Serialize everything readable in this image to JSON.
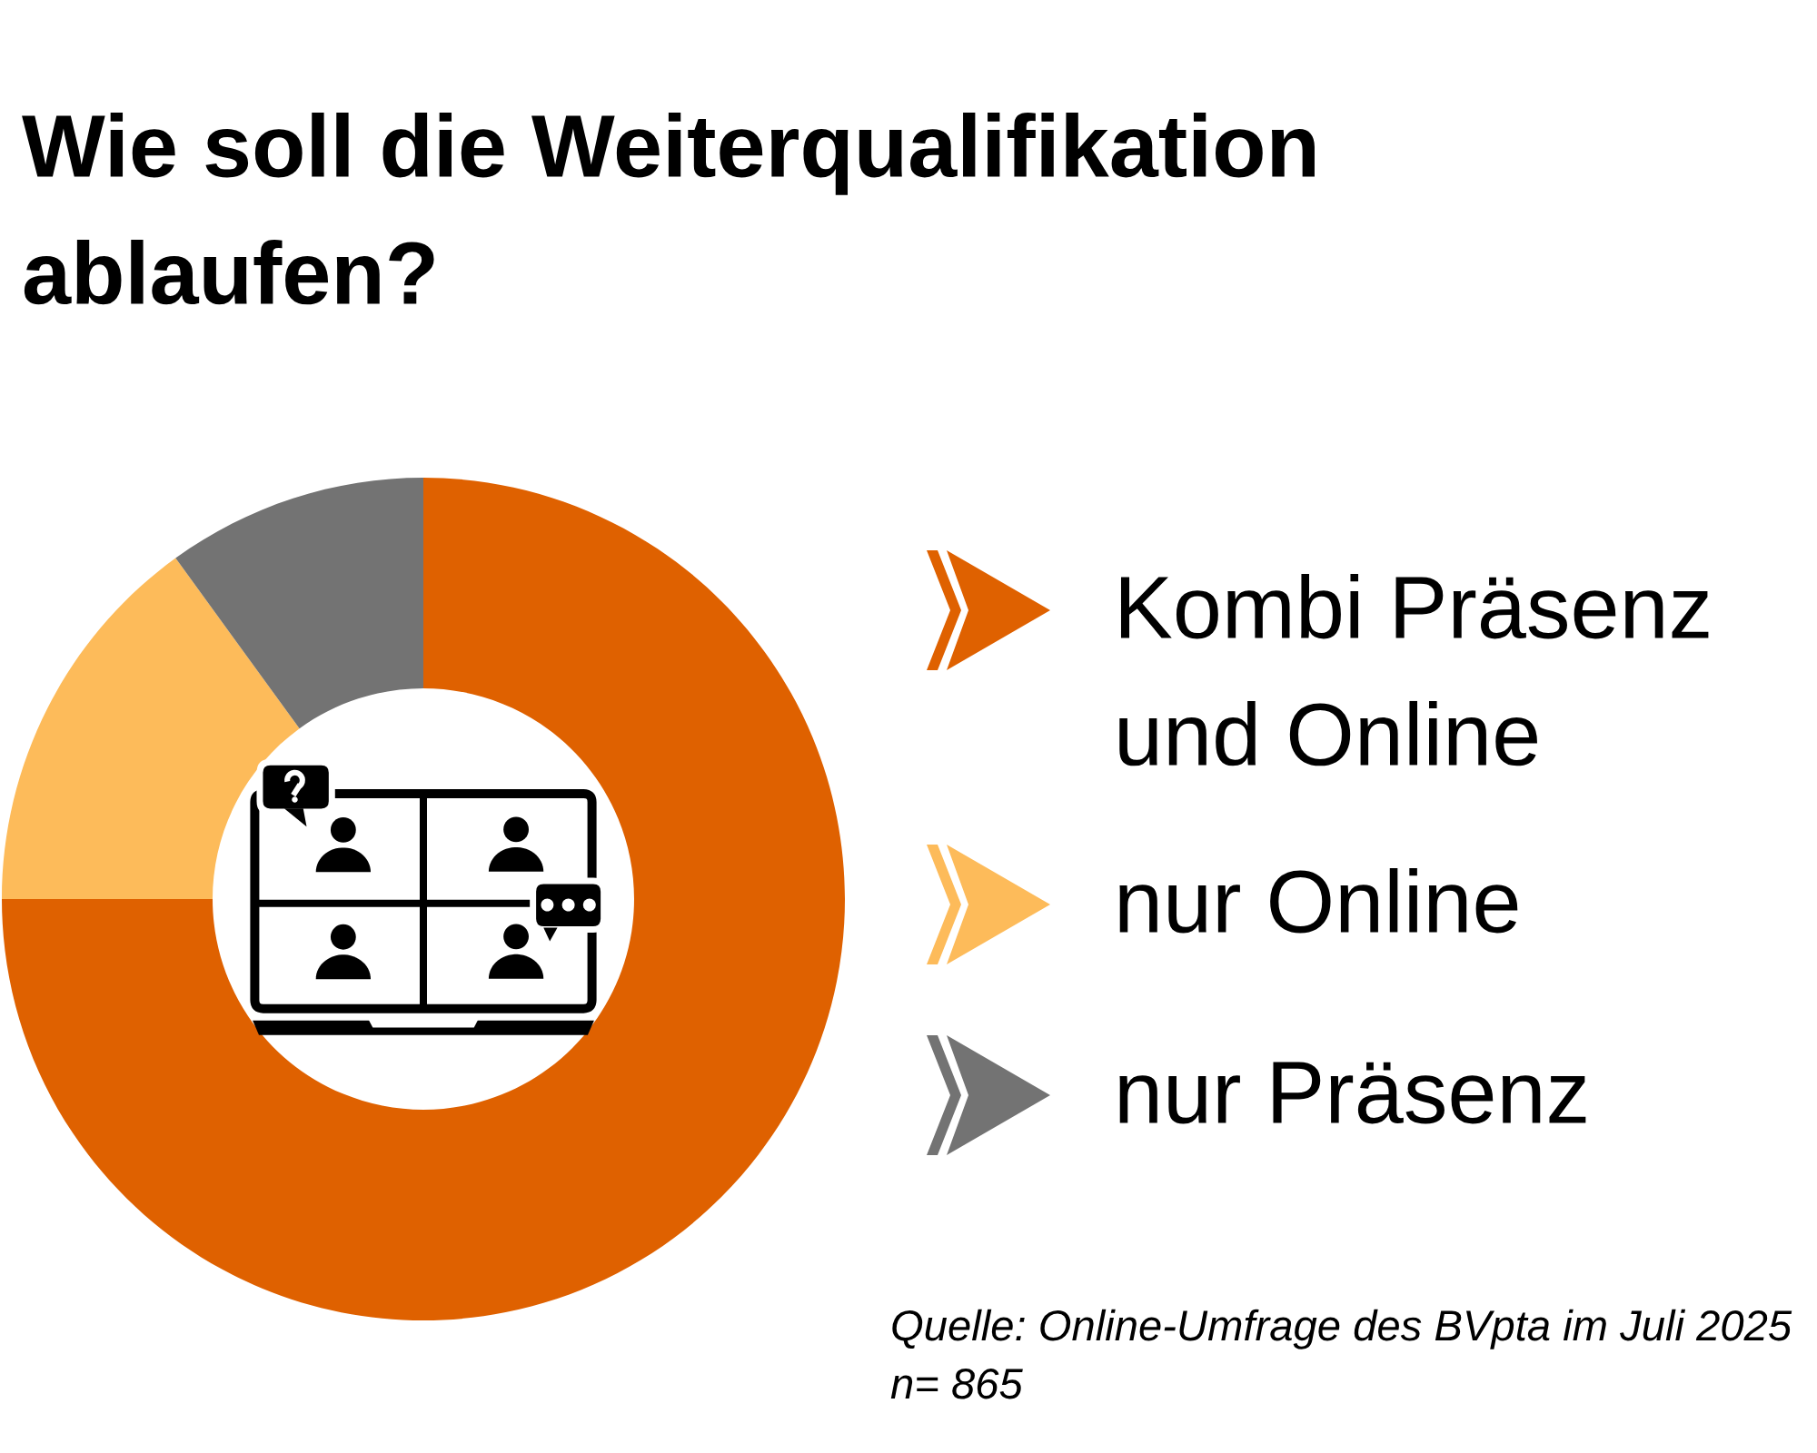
{
  "chart_data": {
    "type": "donut",
    "title": "Wie soll die Weiterqualifikation ablaufen?",
    "categories": [
      "Kombi Präsenz und Online",
      "nur Online",
      "nur Präsenz"
    ],
    "values": [
      75,
      15,
      10
    ],
    "colors": [
      "#df6100",
      "#fdbb5a",
      "#737373"
    ],
    "legend": "right",
    "annotations": [
      "Quelle: Online-Umfrage des BVpta im Juli 2025",
      "n= 865"
    ]
  }
}
